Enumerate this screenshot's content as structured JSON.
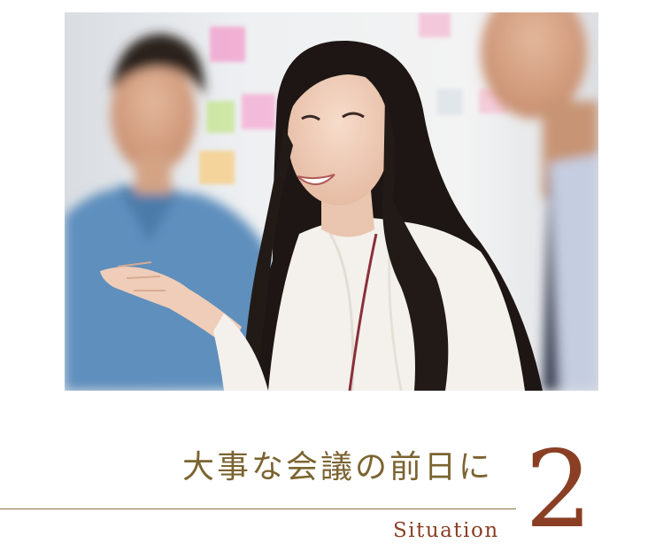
{
  "image": {
    "alt": "会議で笑顔で話す女性",
    "icon": "meeting-photo-icon"
  },
  "title": {
    "text": "大事な会議の前日に"
  },
  "situation": {
    "label": "Situation",
    "number": "2"
  },
  "colors": {
    "title": "#7b6431",
    "accent": "#8a3f24",
    "rule": "#8a7646"
  }
}
